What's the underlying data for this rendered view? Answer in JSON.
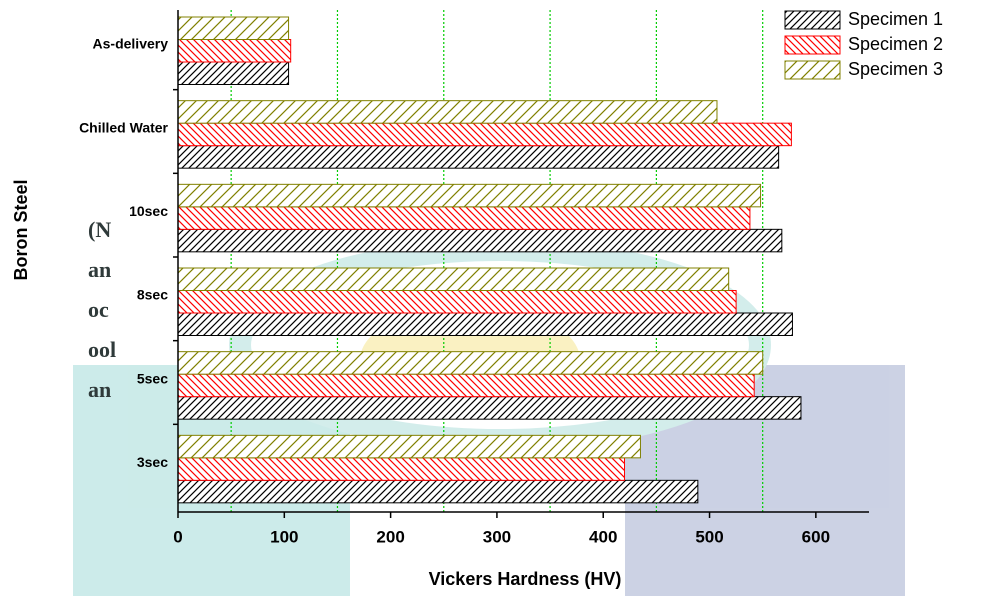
{
  "chart_data": {
    "type": "hbar",
    "xlabel": "Vickers Hardness (HV)",
    "ylabel": "Boron Steel",
    "categories": [
      "As-delivery",
      "Chilled Water",
      "10sec",
      "8sec",
      "5sec",
      "3sec"
    ],
    "series": [
      {
        "name": "Specimen 1",
        "color": "#000000",
        "hatch": "/",
        "values": [
          104,
          565,
          568,
          578,
          586,
          489
        ]
      },
      {
        "name": "Specimen 2",
        "color": "#ff0000",
        "hatch": "\\",
        "values": [
          106,
          577,
          538,
          525,
          542,
          420
        ]
      },
      {
        "name": "Specimen 3",
        "color": "#808000",
        "hatch": "/",
        "values": [
          104,
          507,
          548,
          518,
          550,
          435
        ]
      }
    ],
    "xlim": [
      0,
      650
    ],
    "xticks": [
      0,
      100,
      200,
      300,
      400,
      500,
      600
    ],
    "gridlines": [
      50,
      150,
      250,
      350,
      450,
      550
    ],
    "grid_color": "#00cc00",
    "legend": "upper right",
    "overlay_text": [
      "(N",
      "an",
      "oc",
      "ool",
      "an"
    ]
  }
}
